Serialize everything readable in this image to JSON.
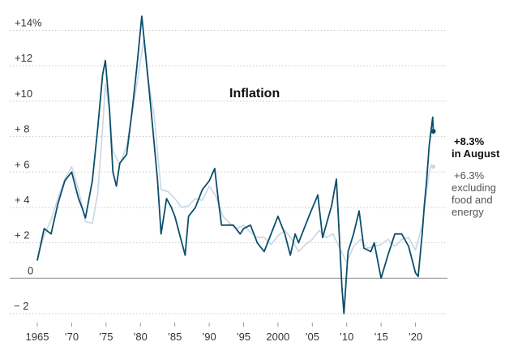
{
  "colors": {
    "headline": "#0b4f6c",
    "core": "#c9d6e3",
    "grid": "#c8c8c8",
    "zero": "#9a9a9a",
    "text": "#333333"
  },
  "chart_data": {
    "type": "line",
    "title": "Inflation",
    "xlabel": "",
    "ylabel": "",
    "xlim": [
      1965,
      2023
    ],
    "ylim": [
      -2,
      14
    ],
    "y_ticks": [
      {
        "value": 14,
        "label": "+14%"
      },
      {
        "value": 12,
        "label": "+12"
      },
      {
        "value": 10,
        "label": "+10"
      },
      {
        "value": 8,
        "label": "+ 8"
      },
      {
        "value": 6,
        "label": "+ 6"
      },
      {
        "value": 4,
        "label": "+ 4"
      },
      {
        "value": 2,
        "label": "+ 2"
      },
      {
        "value": 0,
        "label": "0"
      },
      {
        "value": -2,
        "label": "− 2"
      }
    ],
    "x_ticks": [
      {
        "value": 1965,
        "label": "1965"
      },
      {
        "value": 1970,
        "label": "’70"
      },
      {
        "value": 1975,
        "label": "’75"
      },
      {
        "value": 1980,
        "label": "’80"
      },
      {
        "value": 1985,
        "label": "’85"
      },
      {
        "value": 1990,
        "label": "’90"
      },
      {
        "value": 1995,
        "label": "’95"
      },
      {
        "value": 2000,
        "label": "2000"
      },
      {
        "value": 2005,
        "label": "’05"
      },
      {
        "value": 2010,
        "label": "’10"
      },
      {
        "value": 2015,
        "label": "’15"
      },
      {
        "value": 2020,
        "label": "’20"
      }
    ],
    "series": [
      {
        "name": "excluding food and energy",
        "label_lines": [
          "+6.3%",
          "excluding",
          "food and",
          "energy"
        ],
        "last_value": 6.3,
        "points": [
          [
            1965,
            1.2
          ],
          [
            1966,
            2.4
          ],
          [
            1967,
            3.3
          ],
          [
            1968,
            4.5
          ],
          [
            1969,
            5.6
          ],
          [
            1970,
            6.3
          ],
          [
            1971,
            5.0
          ],
          [
            1972,
            3.2
          ],
          [
            1973,
            3.1
          ],
          [
            1973.8,
            4.8
          ],
          [
            1974.5,
            8.5
          ],
          [
            1974.9,
            11.0
          ],
          [
            1975.5,
            9.5
          ],
          [
            1976,
            7.2
          ],
          [
            1977,
            6.4
          ],
          [
            1978,
            7.5
          ],
          [
            1979,
            9.8
          ],
          [
            1979.9,
            12.0
          ],
          [
            1980.5,
            13.5
          ],
          [
            1981,
            11.5
          ],
          [
            1982,
            9.2
          ],
          [
            1983,
            5.0
          ],
          [
            1984,
            4.9
          ],
          [
            1985,
            4.5
          ],
          [
            1986,
            4.0
          ],
          [
            1987,
            4.1
          ],
          [
            1988,
            4.5
          ],
          [
            1989,
            4.4
          ],
          [
            1990,
            5.2
          ],
          [
            1991,
            4.6
          ],
          [
            1992,
            3.5
          ],
          [
            1993,
            3.1
          ],
          [
            1994,
            2.8
          ],
          [
            1995,
            3.0
          ],
          [
            1996,
            2.6
          ],
          [
            1997,
            2.3
          ],
          [
            1998,
            2.3
          ],
          [
            1999,
            1.9
          ],
          [
            2000,
            2.4
          ],
          [
            2001,
            2.7
          ],
          [
            2002,
            2.2
          ],
          [
            2003,
            1.5
          ],
          [
            2004,
            1.9
          ],
          [
            2005,
            2.2
          ],
          [
            2006,
            2.7
          ],
          [
            2007,
            2.3
          ],
          [
            2008,
            2.5
          ],
          [
            2009,
            1.7
          ],
          [
            2010,
            0.9
          ],
          [
            2011,
            1.8
          ],
          [
            2012,
            2.2
          ],
          [
            2013,
            1.7
          ],
          [
            2014,
            1.8
          ],
          [
            2015,
            1.9
          ],
          [
            2016,
            2.2
          ],
          [
            2017,
            1.8
          ],
          [
            2018,
            2.2
          ],
          [
            2019,
            2.3
          ],
          [
            2020,
            1.6
          ],
          [
            2021,
            3.0
          ],
          [
            2021.5,
            4.5
          ],
          [
            2022,
            6.0
          ],
          [
            2022.3,
            6.4
          ],
          [
            2022.6,
            6.3
          ]
        ]
      },
      {
        "name": "headline",
        "label_lines": [
          "+8.3%",
          "in August"
        ],
        "last_value": 8.3,
        "points": [
          [
            1965,
            1.0
          ],
          [
            1966,
            2.8
          ],
          [
            1967,
            2.5
          ],
          [
            1968,
            4.2
          ],
          [
            1969,
            5.5
          ],
          [
            1970,
            6.0
          ],
          [
            1971,
            4.5
          ],
          [
            1971.5,
            4.0
          ],
          [
            1972,
            3.4
          ],
          [
            1973,
            5.5
          ],
          [
            1973.8,
            8.5
          ],
          [
            1974.5,
            11.5
          ],
          [
            1974.9,
            12.3
          ],
          [
            1975.5,
            9.5
          ],
          [
            1976,
            6.0
          ],
          [
            1976.5,
            5.2
          ],
          [
            1977,
            6.5
          ],
          [
            1978,
            7.0
          ],
          [
            1978.8,
            9.5
          ],
          [
            1979.5,
            12.0
          ],
          [
            1980.2,
            14.8
          ],
          [
            1980.8,
            12.5
          ],
          [
            1981.3,
            10.5
          ],
          [
            1981.9,
            8.0
          ],
          [
            1982.5,
            5.5
          ],
          [
            1983,
            2.5
          ],
          [
            1983.8,
            4.5
          ],
          [
            1984.5,
            4.0
          ],
          [
            1985,
            3.5
          ],
          [
            1986.5,
            1.3
          ],
          [
            1987,
            3.5
          ],
          [
            1988,
            4.0
          ],
          [
            1989,
            5.0
          ],
          [
            1990,
            5.5
          ],
          [
            1990.8,
            6.2
          ],
          [
            1991.3,
            4.5
          ],
          [
            1991.8,
            3.0
          ],
          [
            1992.5,
            3.0
          ],
          [
            1993.5,
            3.0
          ],
          [
            1994.5,
            2.5
          ],
          [
            1995,
            2.8
          ],
          [
            1996,
            3.0
          ],
          [
            1997,
            2.0
          ],
          [
            1998,
            1.5
          ],
          [
            1999,
            2.5
          ],
          [
            2000,
            3.5
          ],
          [
            2001,
            2.5
          ],
          [
            2001.8,
            1.3
          ],
          [
            2002.5,
            2.5
          ],
          [
            2003,
            2.0
          ],
          [
            2004.5,
            3.5
          ],
          [
            2005.8,
            4.7
          ],
          [
            2006.5,
            2.3
          ],
          [
            2007.8,
            4.1
          ],
          [
            2008.5,
            5.6
          ],
          [
            2009.3,
            -0.5
          ],
          [
            2009.6,
            -2.0
          ],
          [
            2010.2,
            1.5
          ],
          [
            2011,
            2.5
          ],
          [
            2011.8,
            3.8
          ],
          [
            2012.5,
            1.7
          ],
          [
            2013.5,
            1.5
          ],
          [
            2014,
            2.0
          ],
          [
            2015,
            0.0
          ],
          [
            2016,
            1.3
          ],
          [
            2017,
            2.5
          ],
          [
            2018,
            2.5
          ],
          [
            2019,
            1.8
          ],
          [
            2020,
            0.3
          ],
          [
            2020.4,
            0.1
          ],
          [
            2021,
            2.6
          ],
          [
            2021.3,
            4.2
          ],
          [
            2021.6,
            5.4
          ],
          [
            2022,
            7.5
          ],
          [
            2022.5,
            9.1
          ],
          [
            2022.6,
            8.3
          ]
        ]
      }
    ]
  }
}
